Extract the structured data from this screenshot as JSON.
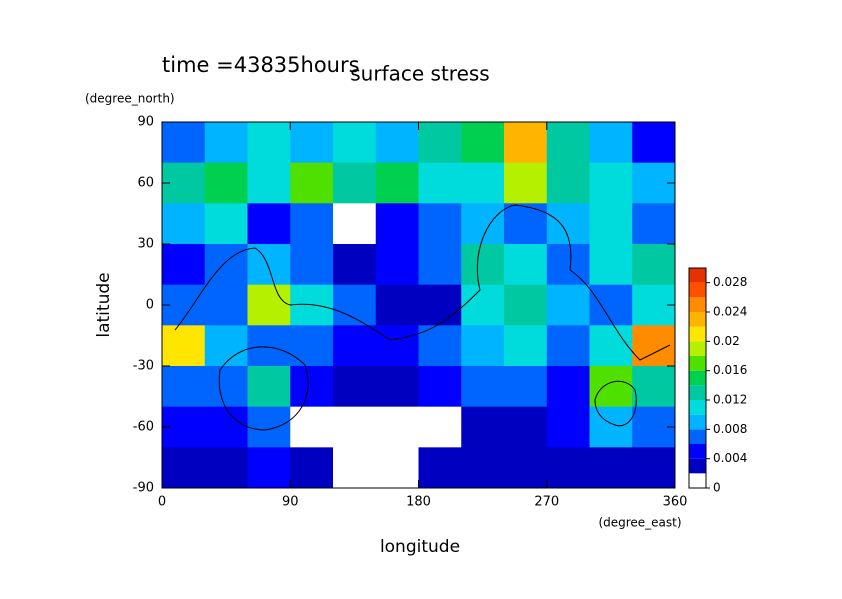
{
  "chart_data": {
    "type": "heatmap",
    "title": "surface stress",
    "subtitle": "time =43835hours",
    "xlabel": "longitude",
    "xunit": "(degree_east)",
    "ylabel": "latitude",
    "yunit": "(degree_north)",
    "x": [
      15,
      45,
      75,
      105,
      135,
      165,
      195,
      225,
      255,
      285,
      315,
      345
    ],
    "y": [
      80,
      60,
      40,
      20,
      0,
      -20,
      -40,
      -60,
      -80
    ],
    "xlim": [
      0,
      360
    ],
    "ylim": [
      -90,
      90
    ],
    "xticks": [
      0,
      90,
      180,
      270,
      360
    ],
    "yticks": [
      -90,
      -60,
      -30,
      0,
      30,
      60,
      90
    ],
    "values": [
      [
        0.006,
        0.008,
        0.01,
        0.008,
        0.01,
        0.008,
        0.012,
        0.014,
        0.022,
        0.012,
        0.008,
        0.004
      ],
      [
        0.012,
        0.014,
        0.01,
        0.016,
        0.012,
        0.014,
        0.01,
        0.01,
        0.018,
        0.012,
        0.01,
        0.008
      ],
      [
        0.008,
        0.01,
        0.004,
        0.006,
        0,
        0.004,
        0.006,
        0.008,
        0.006,
        0.008,
        0.01,
        0.006
      ],
      [
        0.004,
        0.006,
        0.008,
        0.006,
        0.002,
        0.004,
        0.006,
        0.012,
        0.01,
        0.006,
        0.01,
        0.012
      ],
      [
        0.006,
        0.006,
        0.018,
        0.01,
        0.006,
        0.002,
        0.002,
        0.01,
        0.012,
        0.008,
        0.006,
        0.01
      ],
      [
        0.02,
        0.008,
        0.006,
        0.006,
        0.004,
        0.004,
        0.006,
        0.008,
        0.01,
        0.006,
        0.01,
        0.024
      ],
      [
        0.006,
        0.006,
        0.012,
        0.004,
        0.002,
        0.002,
        0.004,
        0.006,
        0.006,
        0.004,
        0.016,
        0.012
      ],
      [
        0.004,
        0.004,
        0.006,
        0,
        0,
        0,
        0,
        0.002,
        0.002,
        0.004,
        0.008,
        0.006
      ],
      [
        0.002,
        0.002,
        0.004,
        0.002,
        0,
        0,
        0.002,
        0.002,
        0.002,
        0.002,
        0.002,
        0.002
      ]
    ],
    "levels": [
      0,
      0.002,
      0.004,
      0.006,
      0.008,
      0.01,
      0.012,
      0.014,
      0.016,
      0.018,
      0.02,
      0.022,
      0.024,
      0.026,
      0.028,
      0.03
    ],
    "colors": [
      "#ffffff",
      "#0000c0",
      "#0000ff",
      "#0064ff",
      "#00b4ff",
      "#00dcdc",
      "#00c8a0",
      "#00d050",
      "#50e000",
      "#b4f000",
      "#ffe600",
      "#ffb400",
      "#ff8c00",
      "#ff5000",
      "#e63200"
    ],
    "cblim": [
      0,
      0.03
    ],
    "cbticks": [
      0,
      0.004,
      0.008,
      0.012,
      0.016,
      0.02,
      0.024,
      0.028
    ]
  }
}
